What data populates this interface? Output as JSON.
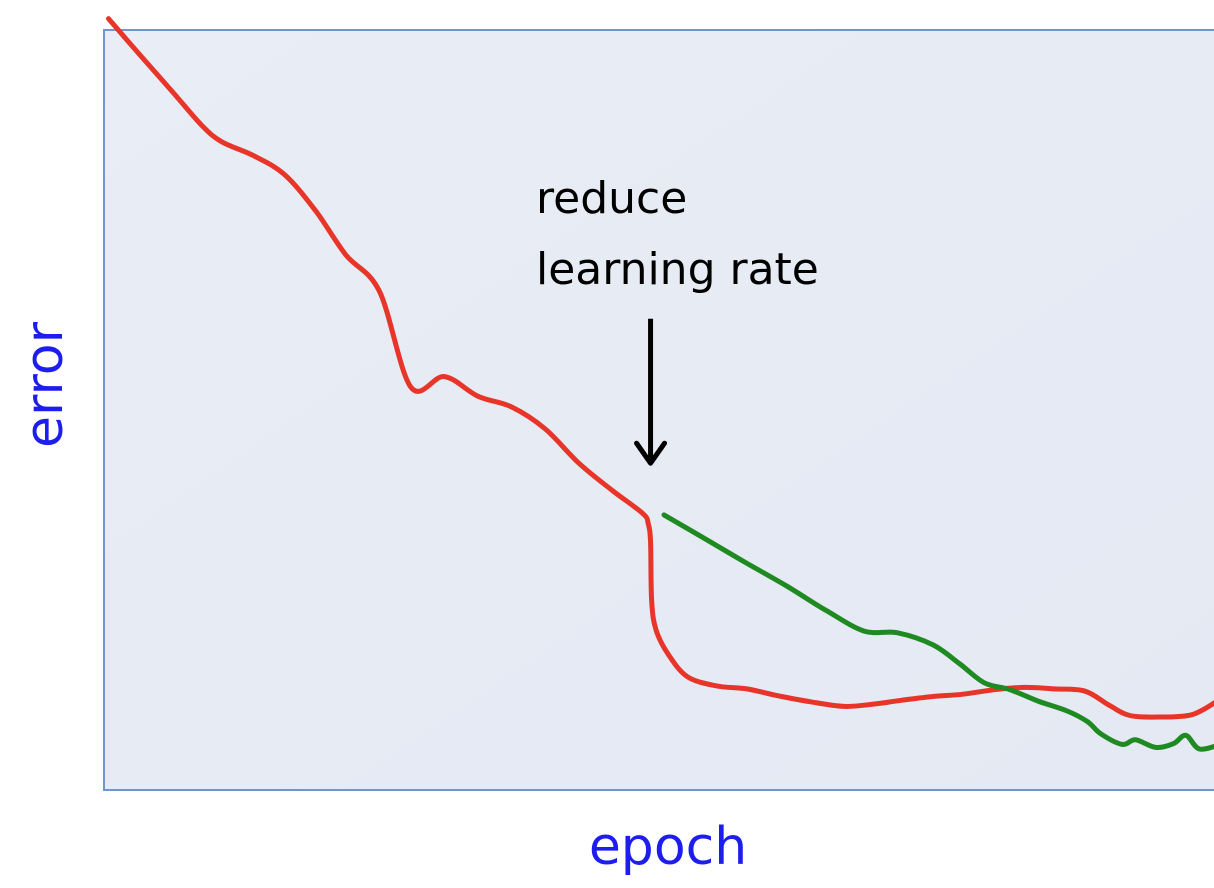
{
  "chart_data": {
    "type": "line",
    "title": "",
    "xlabel": "epoch",
    "ylabel": "error",
    "xlim": [
      0,
      100
    ],
    "ylim": [
      0,
      100
    ],
    "grid": false,
    "annotation": {
      "lines": [
        "reduce",
        "learning rate"
      ],
      "x": 48.8,
      "arrow_from_y": 62,
      "arrow_to_y": 43
    },
    "series": [
      {
        "color": "#e8352a",
        "x": [
          0.4,
          3.4,
          6.1,
          8.7,
          10.5,
          13.3,
          16.1,
          18.9,
          21.6,
          24.6,
          27.4,
          30.4,
          33.4,
          36.4,
          39.4,
          42.4,
          45.4,
          48.1,
          48.6,
          48.8,
          48.9,
          49.3,
          50.4,
          52.1,
          54.7,
          57.4,
          60.2,
          63.1,
          66.1,
          68.7,
          71.2,
          74.0,
          76.7,
          79.5,
          82.2,
          84.9,
          87.6,
          89.8,
          91.6,
          94.2,
          97.1,
          99.3
        ],
        "y": [
          101.5,
          96.4,
          91.9,
          87.5,
          85.3,
          83.5,
          81.0,
          76.2,
          70.4,
          65.6,
          53.0,
          54.4,
          51.8,
          50.4,
          47.5,
          43.0,
          39.4,
          36.4,
          35.0,
          32.5,
          24.8,
          21.0,
          17.8,
          14.9,
          13.7,
          13.3,
          12.4,
          11.6,
          11.0,
          11.3,
          11.8,
          12.3,
          12.6,
          13.2,
          13.5,
          13.3,
          13.0,
          11.1,
          9.8,
          9.6,
          9.9,
          11.6
        ],
        "curved": true
      },
      {
        "color": "#1e8a21",
        "x": [
          50.0,
          53.5,
          57.2,
          61.0,
          64.5,
          67.9,
          70.8,
          74.0,
          76.4,
          78.6,
          80.9,
          83.4,
          86.0,
          87.8,
          89.0,
          90.9,
          92.1,
          93.9,
          95.5,
          96.6,
          97.8,
          99.7
        ],
        "y": [
          36.2,
          33.2,
          30.0,
          26.8,
          23.6,
          20.9,
          20.7,
          19.1,
          16.6,
          14.1,
          13.2,
          11.7,
          10.4,
          9.0,
          7.4,
          6.0,
          6.6,
          5.6,
          6.1,
          7.2,
          5.4,
          6.0
        ],
        "curved": true
      }
    ]
  }
}
